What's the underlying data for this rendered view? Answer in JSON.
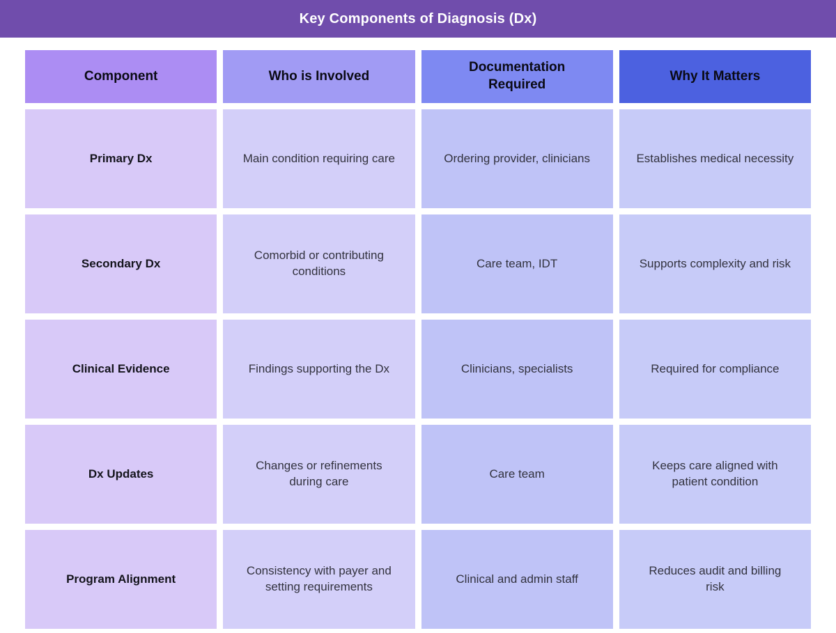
{
  "banner": {
    "title": "Key Components of Diagnosis (Dx)",
    "bg_color": "#704DAC",
    "text_color": "#FFFFFF"
  },
  "chart_data": {
    "type": "table",
    "title": "Key Components of Diagnosis (Dx)",
    "columns": [
      {
        "label": "Component",
        "header_bg": "#AC8DF3",
        "body_bg": "#D8C9F8"
      },
      {
        "label": "Who is Involved",
        "header_bg": "#A19BF4",
        "body_bg": "#D3CFF9"
      },
      {
        "label": "Documentation\nRequired",
        "header_bg": "#7E89F2",
        "body_bg": "#BFC3F7"
      },
      {
        "label": "Why It Matters",
        "header_bg": "#4C61E0",
        "body_bg": "#C7CBF8"
      }
    ],
    "rows": [
      {
        "component": "Primary Dx",
        "who_is_involved": "Main condition requiring care",
        "documentation_required": "Ordering provider, clinicians",
        "why_it_matters": "Establishes medical necessity"
      },
      {
        "component": "Secondary Dx",
        "who_is_involved": "Comorbid or contributing\nconditions",
        "documentation_required": "Care team, IDT",
        "why_it_matters": "Supports complexity and risk"
      },
      {
        "component": "Clinical Evidence",
        "who_is_involved": "Findings supporting the Dx",
        "documentation_required": "Clinicians, specialists",
        "why_it_matters": "Required for compliance"
      },
      {
        "component": "Dx Updates",
        "who_is_involved": "Changes or refinements\nduring care",
        "documentation_required": "Care team",
        "why_it_matters": "Keeps care aligned with\npatient condition"
      },
      {
        "component": "Program Alignment",
        "who_is_involved": "Consistency with payer and\nsetting requirements",
        "documentation_required": "Clinical and admin staff",
        "why_it_matters": "Reduces audit and billing\nrisk"
      }
    ]
  }
}
